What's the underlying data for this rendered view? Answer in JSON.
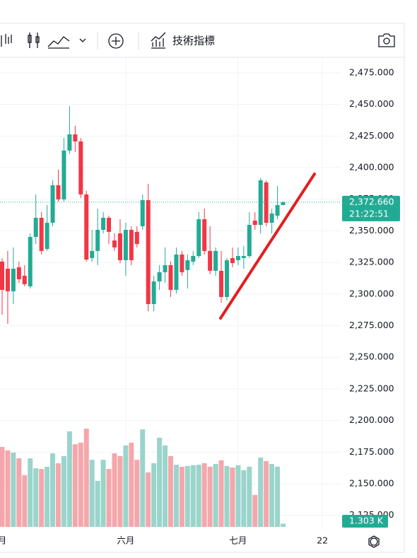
{
  "toolbar": {
    "indicators": "技術指標"
  },
  "chart_data": {
    "type": "candlestick",
    "categories": [
      "月",
      null,
      null,
      null,
      null,
      null,
      null,
      null,
      null,
      null,
      null,
      null,
      null,
      null,
      null,
      null,
      null,
      null,
      null,
      null,
      null,
      null,
      "六月",
      null,
      null,
      null,
      null,
      null,
      null,
      null,
      null,
      null,
      null,
      null,
      null,
      null,
      null,
      null,
      null,
      null,
      null,
      null,
      "七月",
      null,
      null,
      null,
      null,
      null,
      null,
      null,
      null,
      null,
      null,
      null,
      null,
      null,
      null,
      "22"
    ],
    "open": [
      2325.7,
      2320.1,
      2302.2,
      2321.2,
      2314.5,
      2306.1,
      2345.2,
      2360.3,
      2335.7,
      2356.4,
      2386.1,
      2374.9,
      2413.5,
      2426.3,
      2420.7,
      2378.8,
      2328.5,
      2334.1,
      2350.8,
      2360.3,
      2342.4,
      2348.0,
      2326.8,
      2350.8,
      2349.2,
      2353.6,
      2374.3,
      2292.1,
      2310.0,
      2317.3,
      2322.9,
      2303.3,
      2331.3,
      2319.0,
      2325.7,
      2330.1,
      2359.2,
      2334.1,
      2318.4,
      2318.4,
      2297.7,
      2328.5,
      2326.8,
      2328.5,
      2330.1,
      2358.1,
      2354.7,
      2388.3,
      2356.4,
      2362.0,
      2370.4,
      null,
      null,
      null,
      null,
      null,
      null,
      null
    ],
    "high": [
      2328.5,
      2334.1,
      2336.9,
      2325.7,
      2322.9,
      2348.0,
      2378.8,
      2364.8,
      2370.4,
      2390.0,
      2398.4,
      2423.5,
      2448.7,
      2433.1,
      2423.5,
      2381.6,
      2350.8,
      2367.6,
      2364.8,
      2362.0,
      2348.0,
      2359.2,
      2356.4,
      2353.6,
      2353.6,
      2378.8,
      2387.2,
      2314.5,
      2322.9,
      2336.9,
      2325.7,
      2336.9,
      2334.1,
      2331.3,
      2334.1,
      2364.8,
      2367.6,
      2353.6,
      2336.9,
      2334.1,
      2328.5,
      2336.9,
      2336.9,
      2337.9,
      2364.8,
      2364.8,
      2391.7,
      2390.0,
      2367.6,
      2385.5,
      2373.2,
      null,
      null,
      null,
      null,
      null,
      null,
      null
    ],
    "low": [
      2283.7,
      2276.4,
      2292.1,
      2308.9,
      2306.1,
      2304.4,
      2339.6,
      2331.3,
      2334.1,
      2353.6,
      2373.2,
      2373.2,
      2410.7,
      2412.4,
      2376.0,
      2325.7,
      2325.7,
      2322.9,
      2348.0,
      2339.6,
      2334.1,
      2324.5,
      2314.5,
      2322.9,
      2336.9,
      2350.8,
      2286.5,
      2286.5,
      2303.3,
      2308.9,
      2297.7,
      2300.5,
      2314.5,
      2304.4,
      2322.9,
      2328.5,
      2331.3,
      2315.6,
      2314.5,
      2293.2,
      2294.9,
      2321.2,
      2322.9,
      2320.1,
      2328.5,
      2350.8,
      2348.0,
      2353.6,
      2348.0,
      2359.2,
      2370.4,
      null,
      null,
      null,
      null,
      null,
      null,
      null
    ],
    "close": [
      2303.3,
      2302.2,
      2320.1,
      2311.7,
      2307.8,
      2345.2,
      2360.3,
      2334.1,
      2356.4,
      2386.1,
      2374.9,
      2413.5,
      2426.3,
      2420.7,
      2378.8,
      2327.3,
      2334.1,
      2350.8,
      2360.3,
      2349.2,
      2336.9,
      2326.8,
      2350.8,
      2326.8,
      2339.6,
      2374.3,
      2292.1,
      2310.0,
      2317.3,
      2322.9,
      2303.3,
      2331.3,
      2317.3,
      2326.8,
      2330.1,
      2359.2,
      2334.1,
      2318.4,
      2334.1,
      2297.7,
      2326.8,
      2324.5,
      2330.1,
      2330.1,
      2354.7,
      2354.7,
      2390.0,
      2356.4,
      2363.7,
      2370.4,
      2372.66,
      null,
      null,
      null,
      null,
      null,
      null,
      null
    ],
    "volume": [
      32.3,
      30.9,
      30.0,
      27.7,
      20.9,
      27.7,
      23.7,
      23.4,
      24.3,
      29.7,
      25.7,
      28.6,
      38.6,
      33.4,
      34.0,
      39.7,
      27.1,
      18.6,
      27.1,
      23.4,
      29.7,
      28.6,
      32.9,
      34.0,
      27.1,
      39.4,
      22.0,
      25.7,
      36.0,
      32.9,
      28.6,
      25.1,
      24.3,
      24.6,
      24.9,
      25.1,
      25.7,
      24.3,
      25.4,
      26.9,
      24.6,
      24.0,
      24.9,
      22.9,
      24.3,
      12.9,
      28.0,
      26.6,
      25.4,
      24.3,
      1.303,
      null,
      null,
      null,
      null,
      null,
      null,
      null
    ],
    "volume_label": "1.303 K",
    "up_color": "#22ab94",
    "down_color": "#f23645",
    "volume_up_color": "#9ad4cb",
    "volume_down_color": "#f4a7ab",
    "ylim": [
      2113.1,
      2486.7
    ],
    "yticks": [
      {
        "value": 2475,
        "label": "2,475.000"
      },
      {
        "value": 2450,
        "label": "2,450.000"
      },
      {
        "value": 2425,
        "label": "2,425.000"
      },
      {
        "value": 2400,
        "label": "2,400.000"
      },
      {
        "value": 2375,
        "label": "2,375.000"
      },
      {
        "value": 2350,
        "label": "2,350.000"
      },
      {
        "value": 2325,
        "label": "2,325.000"
      },
      {
        "value": 2300,
        "label": "2,300.000"
      },
      {
        "value": 2275,
        "label": "2,275.000"
      },
      {
        "value": 2250,
        "label": "2,250.000"
      },
      {
        "value": 2225,
        "label": "2,225.000"
      },
      {
        "value": 2200,
        "label": "2,200.000"
      },
      {
        "value": 2175,
        "label": "2,175.000"
      },
      {
        "value": 2150,
        "label": "2,150.000"
      },
      {
        "value": 2125,
        "label": "2,125.000"
      }
    ],
    "vol_ylim": [
      0,
      40
    ],
    "last_price": {
      "value": 2372.66,
      "label": "2,372.660"
    },
    "countdown": "21:22:51",
    "grid": true
  }
}
